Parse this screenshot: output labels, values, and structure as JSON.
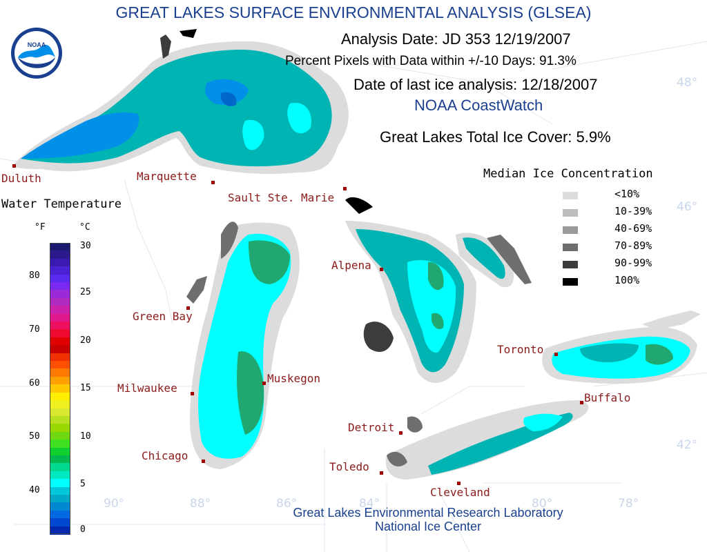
{
  "header": {
    "title": "GREAT LAKES SURFACE ENVIRONMENTAL ANALYSIS (GLSEA)",
    "analysis_date": "Analysis Date:  JD 353 12/19/2007",
    "percent_pixels": "Percent Pixels with Data within +/-10 Days:  91.3%",
    "last_ice": "Date of last ice analysis: 12/18/2007",
    "coastwatch": "NOAA CoastWatch",
    "total_ice_cover": "Great Lakes Total Ice Cover:   5.9%"
  },
  "logo": {
    "text": "NOAA",
    "icon": "noaa-logo-icon"
  },
  "ice_legend": {
    "title": "Median Ice Concentration",
    "items": [
      {
        "label": "<10%",
        "color": "#dcdcdc"
      },
      {
        "label": "10-39%",
        "color": "#bdbdbd"
      },
      {
        "label": "40-69%",
        "color": "#9a9a9a"
      },
      {
        "label": "70-89%",
        "color": "#6e6e6e"
      },
      {
        "label": "90-99%",
        "color": "#3c3c3c"
      },
      {
        "label": "100%",
        "color": "#000000"
      }
    ]
  },
  "temp_legend": {
    "title": "Water Temperature",
    "unit_f": "°F",
    "unit_c": "°C",
    "f_ticks": [
      "80",
      "70",
      "60",
      "50",
      "40"
    ],
    "c_ticks": [
      "30",
      "25",
      "20",
      "15",
      "10",
      "5",
      "0"
    ],
    "colors": [
      "#1a1a6e",
      "#2a1a8c",
      "#3a1ab0",
      "#4a22d4",
      "#5a2af0",
      "#7a2af0",
      "#9a2ad8",
      "#b02ac0",
      "#cc22aa",
      "#e0188c",
      "#ee1060",
      "#f00a30",
      "#e00000",
      "#c80000",
      "#f03000",
      "#ff5000",
      "#ff7a00",
      "#ffa000",
      "#ffc800",
      "#ffee00",
      "#f0f020",
      "#d8e830",
      "#b8e020",
      "#98d800",
      "#70d810",
      "#40e020",
      "#10d030",
      "#00b850",
      "#00d890",
      "#00e8c0",
      "#00ffff",
      "#00c8d8",
      "#00a8c8",
      "#0088d0",
      "#0068e0",
      "#0048d0",
      "#0028b0"
    ]
  },
  "cities": [
    {
      "name": "Duluth"
    },
    {
      "name": "Marquette"
    },
    {
      "name": "Sault Ste. Marie"
    },
    {
      "name": "Green Bay"
    },
    {
      "name": "Alpena"
    },
    {
      "name": "Milwaukee"
    },
    {
      "name": "Muskegon"
    },
    {
      "name": "Chicago"
    },
    {
      "name": "Toronto"
    },
    {
      "name": "Buffalo"
    },
    {
      "name": "Detroit"
    },
    {
      "name": "Toledo"
    },
    {
      "name": "Cleveland"
    }
  ],
  "graticule": {
    "lat_labels": [
      "48°",
      "46°",
      "42°"
    ],
    "lon_labels": [
      "90°",
      "88°",
      "86°",
      "84°",
      "80°",
      "78°"
    ]
  },
  "footer": {
    "line1": "Great Lakes Environmental Research Laboratory",
    "line2": "National Ice Center"
  },
  "colors": {
    "ice_low": "#dcdcdc",
    "water_teal": "#00b4b4",
    "water_cyan": "#00ffff",
    "water_blue": "#0090e8",
    "water_green": "#20a870",
    "title_blue": "#1a3f8f",
    "city_red": "#8b1a1a"
  }
}
